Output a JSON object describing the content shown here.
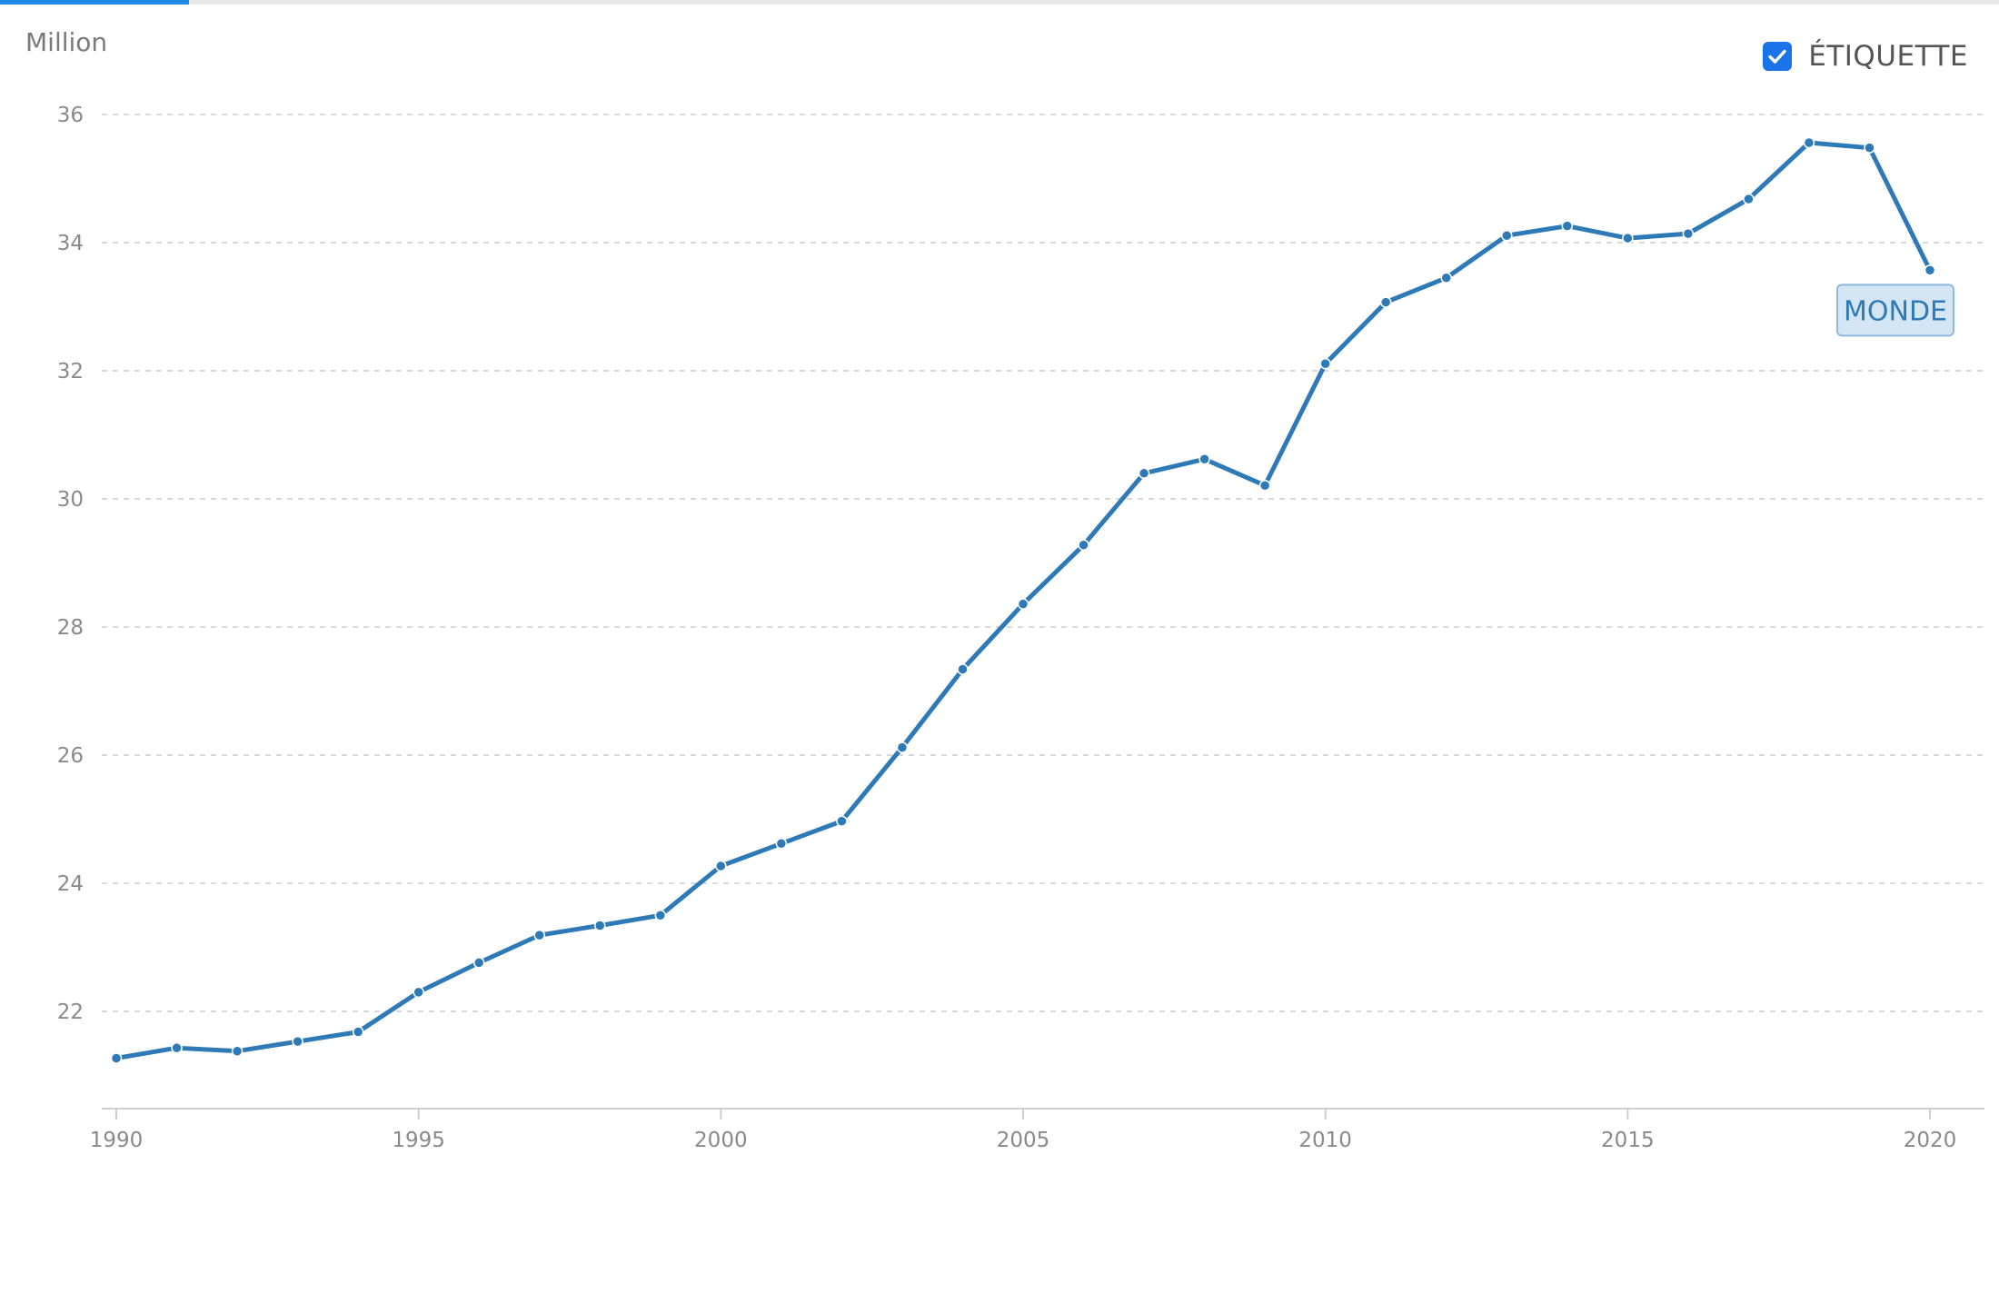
{
  "unit_label": "Million",
  "label_toggle": {
    "checked": true,
    "label": "ÉTIQUETTE"
  },
  "colors": {
    "series": "#2e7ab6",
    "accent": "#1a73e8"
  },
  "chart_data": {
    "type": "line",
    "ylabel": "Million",
    "xlim": [
      1990,
      2020
    ],
    "ylim": [
      20.5,
      36
    ],
    "yticks": [
      22,
      24,
      26,
      28,
      30,
      32,
      34,
      36
    ],
    "xticks": [
      1990,
      1995,
      2000,
      2005,
      2010,
      2015,
      2020
    ],
    "grid": true,
    "series": [
      {
        "name": "MONDE",
        "x": [
          1990,
          1991,
          1992,
          1993,
          1994,
          1995,
          1996,
          1997,
          1998,
          1999,
          2000,
          2001,
          2002,
          2003,
          2004,
          2005,
          2006,
          2007,
          2008,
          2009,
          2010,
          2011,
          2012,
          2013,
          2014,
          2015,
          2016,
          2017,
          2018,
          2019,
          2020
        ],
        "values": [
          21.27,
          21.43,
          21.38,
          21.53,
          21.68,
          22.3,
          22.76,
          23.19,
          23.34,
          23.5,
          24.27,
          24.62,
          24.97,
          26.12,
          27.34,
          28.36,
          29.28,
          30.4,
          30.62,
          30.21,
          32.11,
          33.07,
          33.45,
          34.11,
          34.26,
          34.07,
          34.14,
          34.68,
          35.56,
          35.48,
          33.57
        ]
      }
    ]
  }
}
